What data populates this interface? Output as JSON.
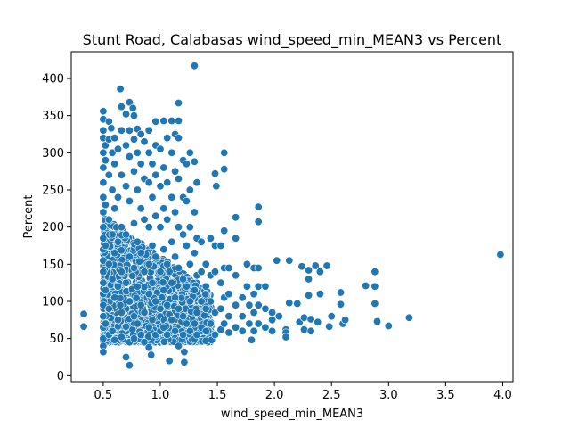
{
  "chart_data": {
    "type": "scatter",
    "title": "Stunt Road, Calabasas wind_speed_min_MEAN3 vs Percent",
    "xlabel": "wind_speed_min_MEAN3",
    "ylabel": "Percent",
    "xlim": [
      0.22,
      4.09
    ],
    "ylim": [
      -8,
      436
    ],
    "xticks": [
      0.5,
      1.0,
      1.5,
      2.0,
      2.5,
      3.0,
      3.5,
      4.0
    ],
    "xtick_labels": [
      "0.5",
      "1.0",
      "1.5",
      "2.0",
      "2.5",
      "3.0",
      "3.5",
      "4.0"
    ],
    "yticks": [
      0,
      50,
      100,
      150,
      200,
      250,
      300,
      350,
      400
    ],
    "ytick_labels": [
      "0",
      "50",
      "100",
      "150",
      "200",
      "250",
      "300",
      "350",
      "400"
    ],
    "grid": false,
    "marker_color": "#1f77b4",
    "marker_edge": "#ffffff",
    "points": [
      [
        0.33,
        83
      ],
      [
        0.33,
        66
      ],
      [
        0.5,
        356
      ],
      [
        0.5,
        345
      ],
      [
        0.5,
        330
      ],
      [
        0.5,
        320
      ],
      [
        0.5,
        300
      ],
      [
        0.5,
        280
      ],
      [
        0.5,
        260
      ],
      [
        0.5,
        240
      ],
      [
        0.5,
        220
      ],
      [
        0.5,
        200
      ],
      [
        0.5,
        185
      ],
      [
        0.5,
        170
      ],
      [
        0.5,
        155
      ],
      [
        0.5,
        140
      ],
      [
        0.5,
        125
      ],
      [
        0.5,
        110
      ],
      [
        0.5,
        95
      ],
      [
        0.5,
        80
      ],
      [
        0.5,
        65
      ],
      [
        0.5,
        50
      ],
      [
        0.5,
        40
      ],
      [
        0.5,
        32
      ],
      [
        0.52,
        310
      ],
      [
        0.52,
        290
      ],
      [
        0.52,
        230
      ],
      [
        0.52,
        175
      ],
      [
        0.52,
        115
      ],
      [
        0.52,
        70
      ],
      [
        0.55,
        342
      ],
      [
        0.55,
        318
      ],
      [
        0.55,
        270
      ],
      [
        0.55,
        210
      ],
      [
        0.55,
        150
      ],
      [
        0.55,
        90
      ],
      [
        0.55,
        55
      ],
      [
        0.57,
        333
      ],
      [
        0.58,
        300
      ],
      [
        0.58,
        250
      ],
      [
        0.58,
        190
      ],
      [
        0.58,
        130
      ],
      [
        0.58,
        60
      ],
      [
        0.6,
        320
      ],
      [
        0.6,
        285
      ],
      [
        0.6,
        225
      ],
      [
        0.6,
        165
      ],
      [
        0.6,
        105
      ],
      [
        0.6,
        48
      ],
      [
        0.63,
        305
      ],
      [
        0.63,
        240
      ],
      [
        0.63,
        180
      ],
      [
        0.63,
        120
      ],
      [
        0.63,
        75
      ],
      [
        0.65,
        386
      ],
      [
        0.66,
        362
      ],
      [
        0.66,
        330
      ],
      [
        0.66,
        270
      ],
      [
        0.66,
        200
      ],
      [
        0.66,
        140
      ],
      [
        0.66,
        85
      ],
      [
        0.66,
        52
      ],
      [
        0.7,
        352
      ],
      [
        0.7,
        310
      ],
      [
        0.7,
        255
      ],
      [
        0.7,
        190
      ],
      [
        0.7,
        125
      ],
      [
        0.7,
        66
      ],
      [
        0.7,
        25
      ],
      [
        0.73,
        368
      ],
      [
        0.73,
        14
      ],
      [
        0.73,
        330
      ],
      [
        0.73,
        295
      ],
      [
        0.73,
        235
      ],
      [
        0.73,
        160
      ],
      [
        0.73,
        100
      ],
      [
        0.73,
        45
      ],
      [
        0.76,
        360
      ],
      [
        0.77,
        350
      ],
      [
        0.77,
        318
      ],
      [
        0.77,
        275
      ],
      [
        0.77,
        205
      ],
      [
        0.77,
        145
      ],
      [
        0.77,
        80
      ],
      [
        0.77,
        50
      ],
      [
        0.8,
        332
      ],
      [
        0.8,
        300
      ],
      [
        0.8,
        250
      ],
      [
        0.8,
        180
      ],
      [
        0.8,
        120
      ],
      [
        0.8,
        70
      ],
      [
        0.83,
        325
      ],
      [
        0.83,
        285
      ],
      [
        0.83,
        225
      ],
      [
        0.83,
        165
      ],
      [
        0.83,
        95
      ],
      [
        0.83,
        55
      ],
      [
        0.86,
        315
      ],
      [
        0.86,
        265
      ],
      [
        0.86,
        210
      ],
      [
        0.86,
        140
      ],
      [
        0.86,
        85
      ],
      [
        0.86,
        45
      ],
      [
        0.9,
        330
      ],
      [
        0.9,
        300
      ],
      [
        0.9,
        260
      ],
      [
        0.9,
        200
      ],
      [
        0.9,
        150
      ],
      [
        0.9,
        110
      ],
      [
        0.9,
        65
      ],
      [
        0.9,
        38
      ],
      [
        0.92,
        28
      ],
      [
        0.93,
        285
      ],
      [
        0.93,
        240
      ],
      [
        0.93,
        175
      ],
      [
        0.93,
        125
      ],
      [
        0.93,
        75
      ],
      [
        0.96,
        342
      ],
      [
        0.96,
        310
      ],
      [
        0.96,
        270
      ],
      [
        0.96,
        215
      ],
      [
        0.96,
        160
      ],
      [
        0.96,
        100
      ],
      [
        0.96,
        55
      ],
      [
        1.0,
        305
      ],
      [
        1.0,
        255
      ],
      [
        1.0,
        200
      ],
      [
        1.0,
        140
      ],
      [
        1.0,
        90
      ],
      [
        1.0,
        60
      ],
      [
        1.03,
        343
      ],
      [
        1.03,
        280
      ],
      [
        1.03,
        225
      ],
      [
        1.03,
        170
      ],
      [
        1.03,
        115
      ],
      [
        1.03,
        65
      ],
      [
        1.06,
        320
      ],
      [
        1.06,
        260
      ],
      [
        1.06,
        210
      ],
      [
        1.06,
        150
      ],
      [
        1.06,
        95
      ],
      [
        1.06,
        55
      ],
      [
        1.08,
        20
      ],
      [
        1.1,
        343
      ],
      [
        1.1,
        300
      ],
      [
        1.1,
        240
      ],
      [
        1.1,
        180
      ],
      [
        1.1,
        125
      ],
      [
        1.1,
        75
      ],
      [
        1.13,
        325
      ],
      [
        1.13,
        275
      ],
      [
        1.13,
        220
      ],
      [
        1.13,
        160
      ],
      [
        1.13,
        105
      ],
      [
        1.13,
        60
      ],
      [
        1.16,
        367
      ],
      [
        1.16,
        343
      ],
      [
        1.16,
        320
      ],
      [
        1.16,
        265
      ],
      [
        1.16,
        200
      ],
      [
        1.16,
        145
      ],
      [
        1.16,
        90
      ],
      [
        1.16,
        40
      ],
      [
        1.2,
        290
      ],
      [
        1.2,
        240
      ],
      [
        1.2,
        190
      ],
      [
        1.2,
        130
      ],
      [
        1.2,
        80
      ],
      [
        1.2,
        55
      ],
      [
        1.21,
        32
      ],
      [
        1.21,
        18
      ],
      [
        1.23,
        285
      ],
      [
        1.23,
        235
      ],
      [
        1.23,
        175
      ],
      [
        1.23,
        120
      ],
      [
        1.23,
        70
      ],
      [
        1.26,
        300
      ],
      [
        1.26,
        250
      ],
      [
        1.26,
        200
      ],
      [
        1.26,
        150
      ],
      [
        1.26,
        100
      ],
      [
        1.26,
        60
      ],
      [
        1.3,
        417
      ],
      [
        1.3,
        288
      ],
      [
        1.3,
        220
      ],
      [
        1.3,
        165
      ],
      [
        1.3,
        115
      ],
      [
        1.3,
        70
      ],
      [
        1.3,
        50
      ],
      [
        1.32,
        260
      ],
      [
        1.32,
        185
      ],
      [
        1.32,
        135
      ],
      [
        1.32,
        85
      ],
      [
        1.32,
        55
      ],
      [
        1.36,
        180
      ],
      [
        1.36,
        140
      ],
      [
        1.36,
        100
      ],
      [
        1.36,
        65
      ],
      [
        1.4,
        150
      ],
      [
        1.4,
        120
      ],
      [
        1.4,
        90
      ],
      [
        1.4,
        60
      ],
      [
        1.44,
        185
      ],
      [
        1.44,
        135
      ],
      [
        1.44,
        100
      ],
      [
        1.44,
        70
      ],
      [
        1.48,
        272
      ],
      [
        1.49,
        255
      ],
      [
        1.48,
        175
      ],
      [
        1.48,
        140
      ],
      [
        1.48,
        85
      ],
      [
        1.48,
        55
      ],
      [
        1.53,
        175
      ],
      [
        1.53,
        125
      ],
      [
        1.53,
        90
      ],
      [
        1.53,
        62
      ],
      [
        1.56,
        300
      ],
      [
        1.56,
        278
      ],
      [
        1.56,
        195
      ],
      [
        1.56,
        145
      ],
      [
        1.56,
        105
      ],
      [
        1.56,
        70
      ],
      [
        1.6,
        145
      ],
      [
        1.6,
        110
      ],
      [
        1.6,
        80
      ],
      [
        1.6,
        58
      ],
      [
        1.66,
        213
      ],
      [
        1.66,
        185
      ],
      [
        1.66,
        135
      ],
      [
        1.66,
        95
      ],
      [
        1.66,
        65
      ],
      [
        1.72,
        105
      ],
      [
        1.72,
        80
      ],
      [
        1.72,
        60
      ],
      [
        1.76,
        150
      ],
      [
        1.76,
        120
      ],
      [
        1.78,
        95
      ],
      [
        1.78,
        70
      ],
      [
        1.82,
        145
      ],
      [
        1.82,
        110
      ],
      [
        1.82,
        85
      ],
      [
        1.82,
        60
      ],
      [
        1.8,
        48
      ],
      [
        1.86,
        227
      ],
      [
        1.86,
        207
      ],
      [
        1.86,
        145
      ],
      [
        1.86,
        120
      ],
      [
        1.86,
        95
      ],
      [
        1.86,
        70
      ],
      [
        1.92,
        120
      ],
      [
        1.92,
        90
      ],
      [
        1.92,
        65
      ],
      [
        1.98,
        85
      ],
      [
        1.98,
        75
      ],
      [
        1.98,
        60
      ],
      [
        2.02,
        155
      ],
      [
        2.04,
        80
      ],
      [
        2.1,
        62
      ],
      [
        2.1,
        58
      ],
      [
        2.1,
        52
      ],
      [
        2.13,
        155
      ],
      [
        2.13,
        98
      ],
      [
        2.2,
        97
      ],
      [
        2.22,
        72
      ],
      [
        2.24,
        147
      ],
      [
        2.26,
        78
      ],
      [
        2.26,
        62
      ],
      [
        2.3,
        142
      ],
      [
        2.3,
        130
      ],
      [
        2.3,
        108
      ],
      [
        2.32,
        76
      ],
      [
        2.32,
        60
      ],
      [
        2.36,
        148
      ],
      [
        2.4,
        140
      ],
      [
        2.4,
        110
      ],
      [
        2.38,
        72
      ],
      [
        2.46,
        148
      ],
      [
        2.48,
        66
      ],
      [
        2.5,
        80
      ],
      [
        2.58,
        112
      ],
      [
        2.58,
        96
      ],
      [
        2.6,
        70
      ],
      [
        2.62,
        75
      ],
      [
        2.8,
        121
      ],
      [
        2.88,
        140
      ],
      [
        2.88,
        120
      ],
      [
        2.88,
        97
      ],
      [
        2.9,
        73
      ],
      [
        3.0,
        67
      ],
      [
        3.18,
        78
      ],
      [
        3.98,
        163
      ]
    ]
  }
}
